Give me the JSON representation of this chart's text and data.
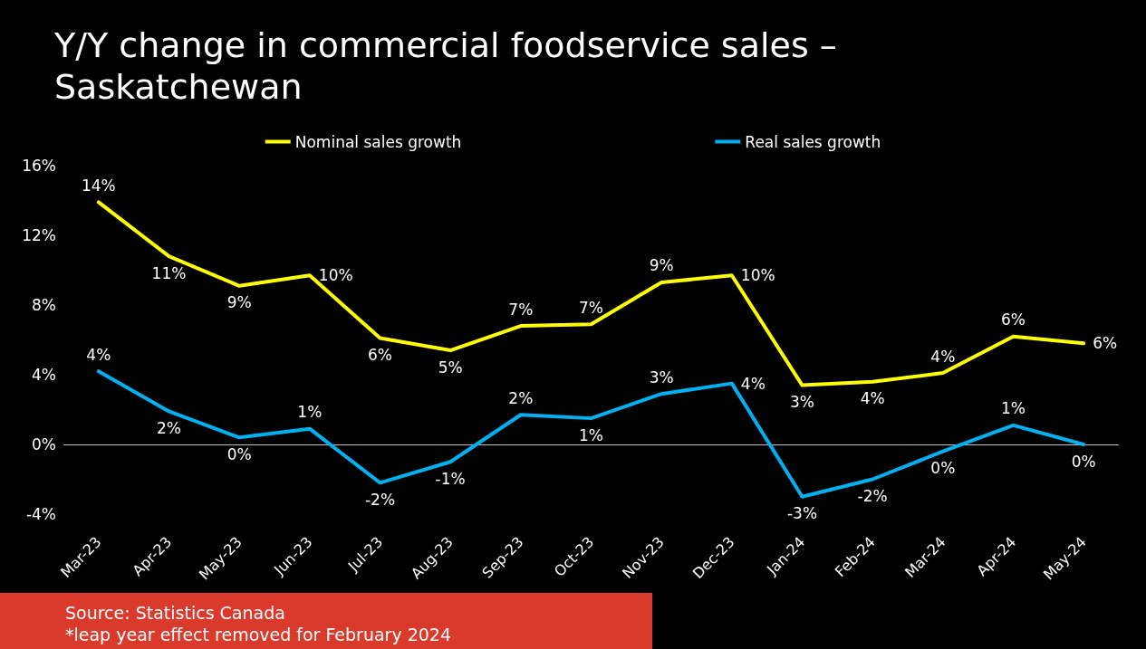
{
  "chart_data": {
    "type": "line",
    "title": "Y/Y change in commercial foodservice sales –\nSaskatchewan",
    "categories": [
      "Mar-23",
      "Apr-23",
      "May-23",
      "Jun-23",
      "Jul-23",
      "Aug-23",
      "Sep-23",
      "Oct-23",
      "Nov-23",
      "Dec-23",
      "Jan-24",
      "Feb-24",
      "Mar-24",
      "Apr-24",
      "May-24"
    ],
    "series": [
      {
        "name": "Nominal sales growth",
        "color": "#ffff00",
        "values": [
          13.9,
          10.8,
          9.1,
          9.7,
          6.1,
          5.4,
          6.8,
          6.9,
          9.3,
          9.7,
          3.4,
          3.6,
          4.1,
          6.2,
          5.8
        ],
        "value_labels": [
          "14%",
          "11%",
          "9%",
          "10%",
          "6%",
          "5%",
          "7%",
          "7%",
          "9%",
          "10%",
          "3%",
          "4%",
          "4%",
          "6%",
          "6%"
        ]
      },
      {
        "name": "Real sales growth",
        "color": "#00b0f0",
        "values": [
          4.2,
          1.9,
          0.4,
          0.9,
          -2.2,
          -1.0,
          1.7,
          1.5,
          2.9,
          3.5,
          -3.0,
          -2.0,
          -0.4,
          1.1,
          0.0
        ],
        "value_labels": [
          "4%",
          "2%",
          "0%",
          "1%",
          "-2%",
          "-1%",
          "2%",
          "1%",
          "3%",
          "4%",
          "-3%",
          "-2%",
          "0%",
          "1%",
          "0%"
        ]
      }
    ],
    "ylim": [
      -4,
      16
    ],
    "yticks": [
      {
        "value": -4,
        "label": "-4%"
      },
      {
        "value": 0,
        "label": "0%"
      },
      {
        "value": 4,
        "label": "4%"
      },
      {
        "value": 8,
        "label": "8%"
      },
      {
        "value": 12,
        "label": "12%"
      },
      {
        "value": 16,
        "label": "16%"
      }
    ],
    "grid": false,
    "ref_lines": [
      {
        "axis": "y",
        "value": 0,
        "color": "#bfbfbf"
      }
    ],
    "legend": "top",
    "marker": "none",
    "line_style": "solid",
    "annotations": [
      "Source: Statistics Canada",
      "*leap year effect removed for February 2024"
    ]
  }
}
